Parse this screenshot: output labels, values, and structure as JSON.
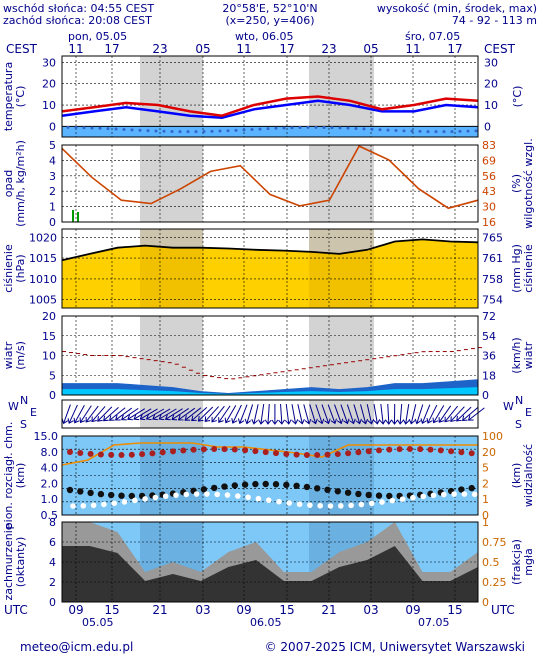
{
  "header": {
    "sunrise": "wschód słońca: 04:55 CEST",
    "sunset": "zachód słońca: 20:08 CEST",
    "coords": "20°58'E, 52°10'N",
    "grid": "(x=250,  y=406)",
    "elev_title": "wysokość (min, środek, max)",
    "elev_values": "74 - 92 - 113 m"
  },
  "time_axis": {
    "top_tz": "CEST",
    "bottom_tz": "UTC",
    "days_top": [
      "pon, 05.05",
      "wto, 06.05",
      "śro, 07.05"
    ],
    "top_hours": [
      "11",
      "17",
      "23",
      "05",
      "11",
      "17",
      "23",
      "05",
      "11",
      "17"
    ],
    "bottom_hours": [
      "09",
      "15",
      "21",
      "03",
      "09",
      "15",
      "21",
      "03",
      "09",
      "15"
    ],
    "days_bottom": [
      "05.05",
      "06.05",
      "07.05"
    ]
  },
  "panels": {
    "temperature": {
      "label_left": "temperatura",
      "unit_left": "(°C)",
      "label_right": "(°C)",
      "ticks": [
        "30",
        "20",
        "10",
        "0"
      ]
    },
    "precip": {
      "label_left": "opad",
      "unit_left": "(mm/h, kg/m²h)",
      "label_right": "wilgotność wzgl.",
      "unit_right": "(%)",
      "ticks_left": [
        "5",
        "4",
        "3",
        "2",
        "1",
        "0"
      ],
      "ticks_right": [
        "83",
        "69",
        "56",
        "43",
        "30",
        "16"
      ]
    },
    "pressure": {
      "label_left": "ciśnienie",
      "unit_left": "(hPa)",
      "label_right": "ciśnienie",
      "unit_right": "(mm Hg)",
      "ticks_left": [
        "1020",
        "1015",
        "1010",
        "1005"
      ],
      "ticks_right": [
        "765",
        "761",
        "758",
        "754"
      ]
    },
    "wind": {
      "label_left": "wiatr",
      "unit_left": "(m/s)",
      "label_right": "wiatr",
      "unit_right": "(km/h)",
      "ticks_left": [
        "20",
        "15",
        "10",
        "5",
        "0"
      ],
      "ticks_right": [
        "72",
        "54",
        "36",
        "18",
        "0"
      ]
    },
    "direction": {
      "n": "N",
      "s": "S",
      "w": "W",
      "e": "E"
    },
    "visibility": {
      "label_left": "pion. rozciągł. chm.",
      "unit_left": "(km)",
      "label_right": "widzialność",
      "unit_right": "(km)",
      "ticks_left": [
        "15.0",
        "8.0",
        "4.0",
        "2.0",
        "1.0",
        "0.5"
      ],
      "ticks_right": [
        "100",
        "20",
        "5",
        "2",
        "1",
        "0"
      ]
    },
    "clouds": {
      "label_left": "zachmurzenie",
      "unit_left": "(oktanty)",
      "label_right": "mgła",
      "unit_right": "(frakcja)",
      "ticks_left": [
        "8",
        "6",
        "4",
        "2",
        "0"
      ],
      "ticks_right": [
        "1",
        "0.75",
        "0.5",
        "0.25",
        "0"
      ]
    }
  },
  "footer": {
    "email": "meteo@icm.edu.pl",
    "copyright": "© 2007-2025 ICM, Uniwersytet Warszawski"
  },
  "colors": {
    "night": "#d3d3d3",
    "temp": "#dd0000",
    "dew": "#0000ff",
    "humidity": "#cc4400",
    "pressure": "#ffd000",
    "wind": "#0055cc"
  },
  "chart_data": [
    {
      "type": "line",
      "title": "temperatura",
      "x_hours_from_start": [
        0,
        6,
        12,
        18,
        24,
        30,
        36,
        42,
        48,
        54,
        60,
        66,
        72,
        78
      ],
      "series": [
        {
          "name": "temperatura",
          "values": [
            7,
            9,
            11,
            10,
            7,
            5,
            10,
            13,
            14,
            12,
            8,
            10,
            13,
            12
          ]
        },
        {
          "name": "punkt rosy",
          "values": [
            5,
            7,
            9,
            7,
            5,
            4,
            8,
            10,
            12,
            10,
            7,
            7,
            10,
            9
          ]
        }
      ],
      "ylim": [
        -5,
        33
      ]
    },
    {
      "type": "line",
      "title": "wilgotność wzgl.",
      "series": [
        {
          "name": "wilgotność",
          "values": [
            80,
            55,
            35,
            32,
            45,
            60,
            65,
            40,
            30,
            35,
            82,
            70,
            45,
            28,
            35
          ]
        }
      ],
      "ylim": [
        16,
        83
      ]
    },
    {
      "type": "area",
      "title": "ciśnienie",
      "series": [
        {
          "name": "ciśnienie",
          "values": [
            1014.5,
            1016,
            1017.5,
            1018,
            1017.5,
            1017.5,
            1017.3,
            1017,
            1016.8,
            1016.5,
            1016,
            1017,
            1019,
            1019.5,
            1019,
            1018.8
          ]
        }
      ],
      "ylim": [
        1003,
        1022
      ]
    },
    {
      "type": "area",
      "title": "wiatr",
      "series": [
        {
          "name": "prędkość",
          "values": [
            3,
            3,
            3,
            2.5,
            2,
            1,
            0.5,
            1,
            1.5,
            2,
            1.5,
            2,
            3,
            3,
            3.5,
            4
          ]
        },
        {
          "name": "porywy",
          "values": [
            11,
            10,
            10,
            9,
            8,
            5,
            4,
            5,
            6,
            7,
            8,
            9,
            10,
            11,
            11,
            12
          ]
        }
      ],
      "ylim": [
        0,
        20
      ]
    },
    {
      "type": "area",
      "title": "zachmurzenie",
      "series": [
        {
          "name": "zachmurzenie",
          "values": [
            8,
            8,
            7,
            3,
            4,
            3,
            5,
            6,
            3,
            3,
            5,
            6,
            8,
            3,
            3,
            5
          ]
        }
      ],
      "ylim": [
        0,
        8
      ]
    }
  ]
}
